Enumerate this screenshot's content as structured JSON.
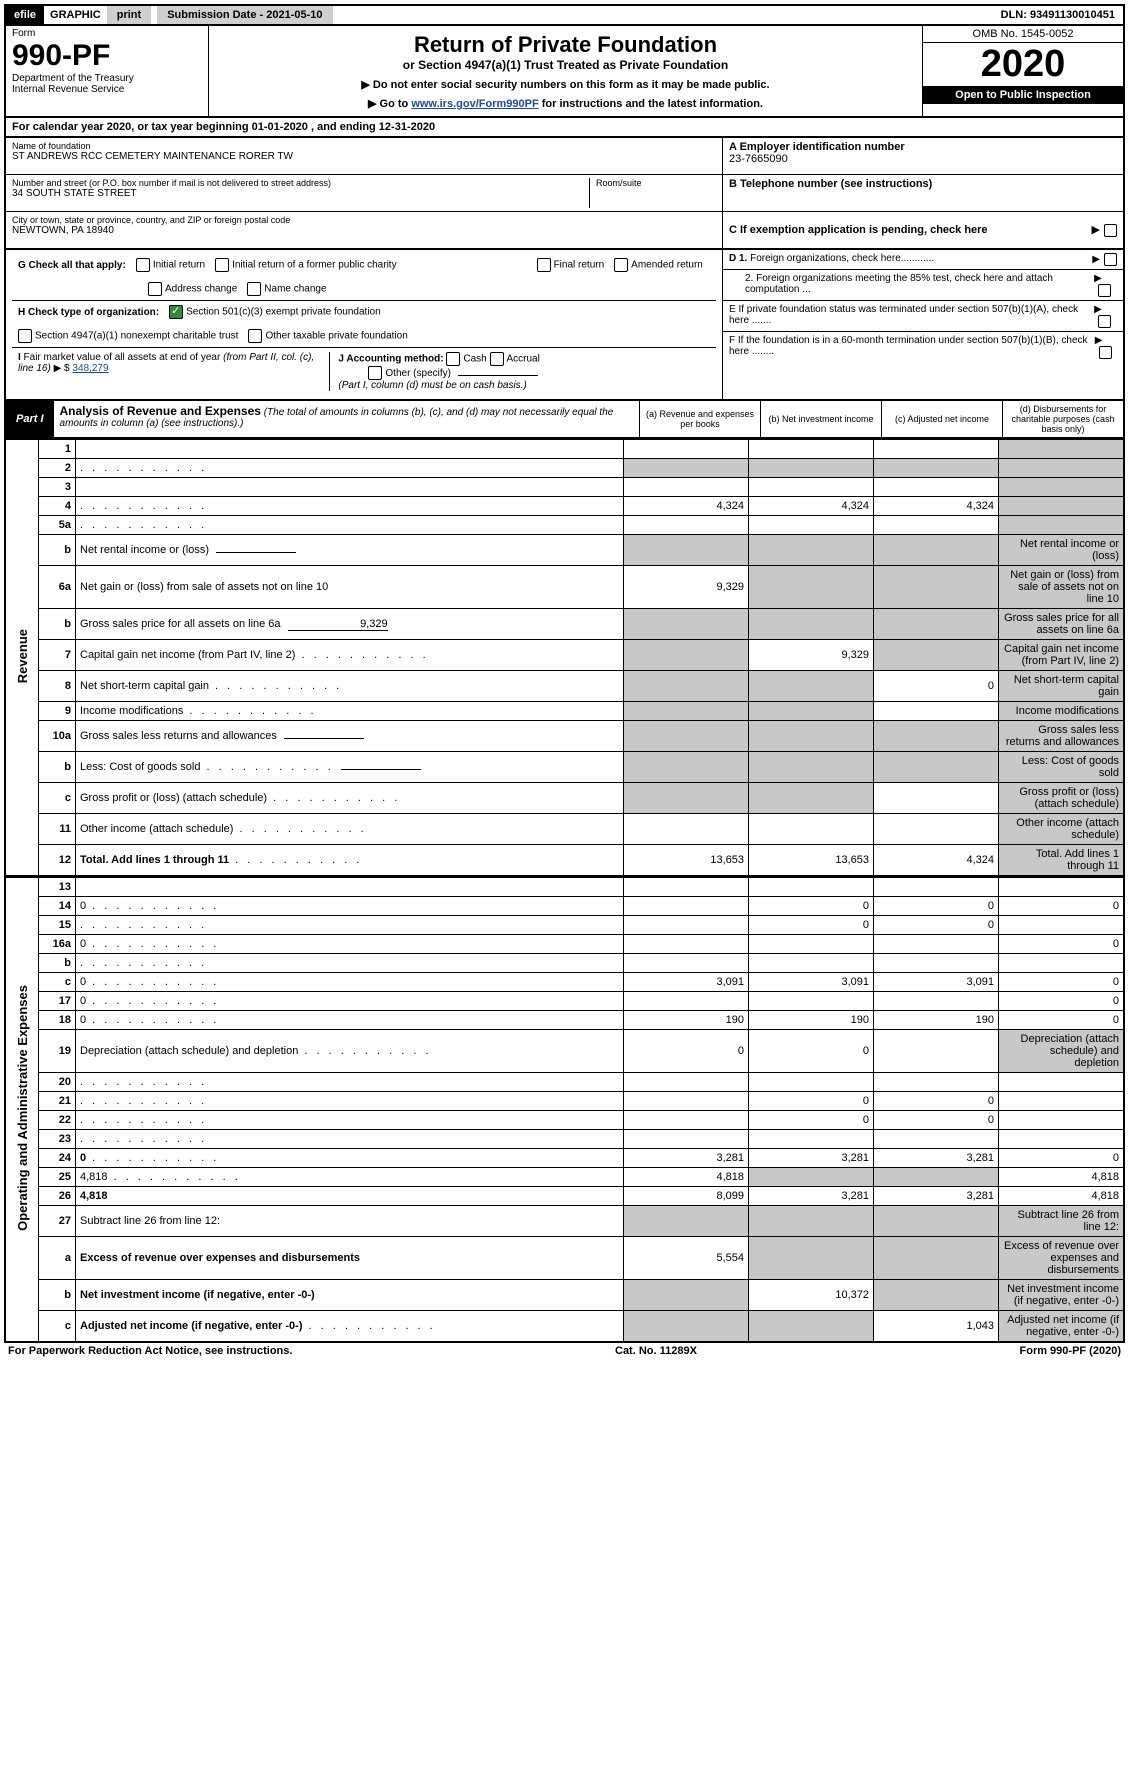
{
  "topbar": {
    "efile": "efile",
    "graphic": "GRAPHIC",
    "print": "print",
    "sub_date": "Submission Date - 2021-05-10",
    "dln": "DLN: 93491130010451"
  },
  "header": {
    "form_label": "Form",
    "form_num": "990-PF",
    "dept": "Department of the Treasury",
    "irs": "Internal Revenue Service",
    "title": "Return of Private Foundation",
    "subtitle": "or Section 4947(a)(1) Trust Treated as Private Foundation",
    "note1": "▶ Do not enter social security numbers on this form as it may be made public.",
    "note2_prefix": "▶ Go to ",
    "note2_link": "www.irs.gov/Form990PF",
    "note2_suffix": " for instructions and the latest information.",
    "omb": "OMB No. 1545-0052",
    "year": "2020",
    "inspect": "Open to Public Inspection"
  },
  "cal": "For calendar year 2020, or tax year beginning 01-01-2020                      , and ending 12-31-2020",
  "info": {
    "name_label": "Name of foundation",
    "name": "ST ANDREWS RCC CEMETERY MAINTENANCE RORER TW",
    "addr_label": "Number and street (or P.O. box number if mail is not delivered to street address)",
    "addr": "34 SOUTH STATE STREET",
    "room_label": "Room/suite",
    "city_label": "City or town, state or province, country, and ZIP or foreign postal code",
    "city": "NEWTOWN, PA  18940",
    "a_label": "A Employer identification number",
    "a_val": "23-7665090",
    "b_label": "B Telephone number (see instructions)",
    "c_label": "C If exemption application is pending, check here"
  },
  "g": {
    "label": "G Check all that apply:",
    "opts": [
      "Initial return",
      "Initial return of a former public charity",
      "Final return",
      "Amended return",
      "Address change",
      "Name change"
    ]
  },
  "h": {
    "label": "H Check type of organization:",
    "opt1": "Section 501(c)(3) exempt private foundation",
    "opt2": "Section 4947(a)(1) nonexempt charitable trust",
    "opt3": "Other taxable private foundation"
  },
  "i": {
    "label": "I Fair market value of all assets at end of year (from Part II, col. (c), line 16) ▶ $",
    "val": "348,279"
  },
  "j": {
    "label": "J Accounting method:",
    "cash": "Cash",
    "accrual": "Accrual",
    "other": "Other (specify)",
    "note": "(Part I, column (d) must be on cash basis.)"
  },
  "right": {
    "d1": "D 1. Foreign organizations, check here............",
    "d2": "2. Foreign organizations meeting the 85% test, check here and attach computation ...",
    "e": "E  If private foundation status was terminated under section 507(b)(1)(A), check here .......",
    "f": "F  If the foundation is in a 60-month termination under section 507(b)(1)(B), check here ........"
  },
  "part1": {
    "label": "Part I",
    "title": "Analysis of Revenue and Expenses",
    "desc": "(The total of amounts in columns (b), (c), and (d) may not necessarily equal the amounts in column (a) (see instructions).)",
    "cols": {
      "a": "(a)   Revenue and expenses per books",
      "b": "(b)  Net investment income",
      "c": "(c)  Adjusted net income",
      "d": "(d)  Disbursements for charitable purposes (cash basis only)"
    }
  },
  "side": {
    "rev": "Revenue",
    "exp": "Operating and Administrative Expenses"
  },
  "rows": [
    {
      "n": "1",
      "d": "",
      "a": "",
      "b": "",
      "c": "",
      "dgrey": true
    },
    {
      "n": "2",
      "d": "",
      "dots": true,
      "a": "",
      "b": "",
      "c": "",
      "agrey": true,
      "bgrey": true,
      "cgrey": true,
      "dgrey": true
    },
    {
      "n": "3",
      "d": "",
      "a": "",
      "b": "",
      "c": "",
      "dgrey": true
    },
    {
      "n": "4",
      "d": "",
      "dots": true,
      "a": "4,324",
      "b": "4,324",
      "c": "4,324",
      "dgrey": true
    },
    {
      "n": "5a",
      "d": "",
      "dots": true,
      "a": "",
      "b": "",
      "c": "",
      "dgrey": true
    },
    {
      "n": "b",
      "d": "Net rental income or (loss)",
      "line": true,
      "agrey": true,
      "bgrey": true,
      "cgrey": true,
      "dgrey": true
    },
    {
      "n": "6a",
      "d": "Net gain or (loss) from sale of assets not on line 10",
      "a": "9,329",
      "bgrey": true,
      "cgrey": true,
      "dgrey": true
    },
    {
      "n": "b",
      "d": "Gross sales price for all assets on line 6a",
      "lineval": "9,329",
      "agrey": true,
      "bgrey": true,
      "cgrey": true,
      "dgrey": true
    },
    {
      "n": "7",
      "d": "Capital gain net income (from Part IV, line 2)",
      "dots": true,
      "agrey": true,
      "b": "9,329",
      "cgrey": true,
      "dgrey": true
    },
    {
      "n": "8",
      "d": "Net short-term capital gain",
      "dots": true,
      "agrey": true,
      "bgrey": true,
      "c": "0",
      "dgrey": true
    },
    {
      "n": "9",
      "d": "Income modifications",
      "dots": true,
      "agrey": true,
      "bgrey": true,
      "c": "",
      "dgrey": true
    },
    {
      "n": "10a",
      "d": "Gross sales less returns and allowances",
      "line": true,
      "agrey": true,
      "bgrey": true,
      "cgrey": true,
      "dgrey": true
    },
    {
      "n": "b",
      "d": "Less: Cost of goods sold",
      "dots": true,
      "line": true,
      "agrey": true,
      "bgrey": true,
      "cgrey": true,
      "dgrey": true
    },
    {
      "n": "c",
      "d": "Gross profit or (loss) (attach schedule)",
      "dots": true,
      "agrey": true,
      "bgrey": true,
      "c": "",
      "dgrey": true
    },
    {
      "n": "11",
      "d": "Other income (attach schedule)",
      "dots": true,
      "a": "",
      "b": "",
      "c": "",
      "dgrey": true
    },
    {
      "n": "12",
      "d": "Total. Add lines 1 through 11",
      "bold": true,
      "dots": true,
      "a": "13,653",
      "b": "13,653",
      "c": "4,324",
      "dgrey": true
    }
  ],
  "exp_rows": [
    {
      "n": "13",
      "d": "",
      "a": "",
      "b": "",
      "c": ""
    },
    {
      "n": "14",
      "d": "0",
      "dots": true,
      "a": "",
      "b": "0",
      "c": "0"
    },
    {
      "n": "15",
      "d": "",
      "dots": true,
      "a": "",
      "b": "0",
      "c": "0"
    },
    {
      "n": "16a",
      "d": "0",
      "dots": true,
      "a": "",
      "b": "",
      "c": ""
    },
    {
      "n": "b",
      "d": "",
      "dots": true,
      "a": "",
      "b": "",
      "c": ""
    },
    {
      "n": "c",
      "d": "0",
      "dots": true,
      "a": "3,091",
      "b": "3,091",
      "c": "3,091"
    },
    {
      "n": "17",
      "d": "0",
      "dots": true,
      "a": "",
      "b": "",
      "c": ""
    },
    {
      "n": "18",
      "d": "0",
      "dots": true,
      "a": "190",
      "b": "190",
      "c": "190"
    },
    {
      "n": "19",
      "d": "Depreciation (attach schedule) and depletion",
      "dots": true,
      "a": "0",
      "b": "0",
      "c": "",
      "dgrey": true
    },
    {
      "n": "20",
      "d": "",
      "dots": true,
      "a": "",
      "b": "",
      "c": ""
    },
    {
      "n": "21",
      "d": "",
      "dots": true,
      "a": "",
      "b": "0",
      "c": "0"
    },
    {
      "n": "22",
      "d": "",
      "dots": true,
      "a": "",
      "b": "0",
      "c": "0"
    },
    {
      "n": "23",
      "d": "",
      "dots": true,
      "a": "",
      "b": "",
      "c": ""
    },
    {
      "n": "24",
      "d": "0",
      "bold": true,
      "dots": true,
      "a": "3,281",
      "b": "3,281",
      "c": "3,281"
    },
    {
      "n": "25",
      "d": "4,818",
      "dots": true,
      "a": "4,818",
      "bgrey": true,
      "cgrey": true
    },
    {
      "n": "26",
      "d": "4,818",
      "bold": true,
      "a": "8,099",
      "b": "3,281",
      "c": "3,281"
    },
    {
      "n": "27",
      "d": "Subtract line 26 from line 12:",
      "agrey": true,
      "bgrey": true,
      "cgrey": true,
      "dgrey": true
    },
    {
      "n": "a",
      "d": "Excess of revenue over expenses and disbursements",
      "bold": true,
      "a": "5,554",
      "bgrey": true,
      "cgrey": true,
      "dgrey": true
    },
    {
      "n": "b",
      "d": "Net investment income (if negative, enter -0-)",
      "bold": true,
      "agrey": true,
      "b": "10,372",
      "cgrey": true,
      "dgrey": true
    },
    {
      "n": "c",
      "d": "Adjusted net income (if negative, enter -0-)",
      "bold": true,
      "dots": true,
      "agrey": true,
      "bgrey": true,
      "c": "1,043",
      "dgrey": true
    }
  ],
  "footer": {
    "left": "For Paperwork Reduction Act Notice, see instructions.",
    "mid": "Cat. No. 11289X",
    "right": "Form 990-PF (2020)"
  }
}
